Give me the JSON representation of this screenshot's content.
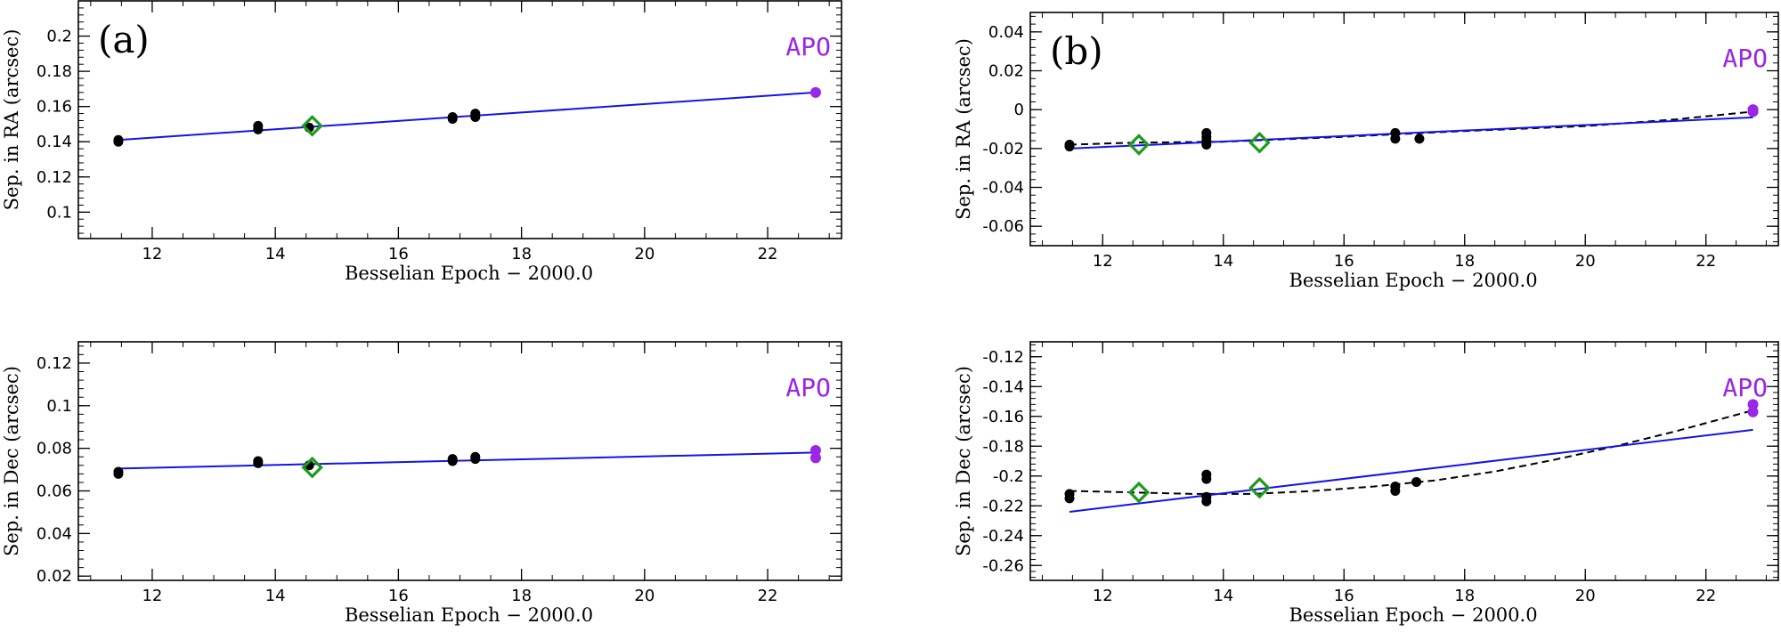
{
  "colors": {
    "fit_line": "#1414e6",
    "points": "#000000",
    "diamond": "#1e9a1e",
    "apo": "#9a26e6",
    "dashed_fit": "#000000"
  },
  "chart_data": [
    {
      "type": "scatter",
      "id": "a-ra",
      "panel_label": "(a)",
      "site_label": "APO",
      "xlabel": "Besselian Epoch − 2000.0",
      "ylabel": "Sep. in RA (arcsec)",
      "xlim": [
        10.8,
        23.2
      ],
      "ylim": [
        0.085,
        0.22
      ],
      "xticks": [
        12,
        14,
        16,
        18,
        20,
        22
      ],
      "xtick_labels": [
        "12",
        "14",
        "16",
        "18",
        "20",
        "22"
      ],
      "yticks": [
        0.1,
        0.12,
        0.14,
        0.16,
        0.18,
        0.2
      ],
      "ytick_labels": [
        "0.1",
        "0.12",
        "0.14",
        "0.16",
        "0.18",
        "0.2"
      ],
      "points": [
        {
          "x": 11.45,
          "y": 0.14
        },
        {
          "x": 11.45,
          "y": 0.141
        },
        {
          "x": 13.72,
          "y": 0.147
        },
        {
          "x": 13.72,
          "y": 0.149
        },
        {
          "x": 14.55,
          "y": 0.148
        },
        {
          "x": 16.88,
          "y": 0.153
        },
        {
          "x": 16.88,
          "y": 0.154
        },
        {
          "x": 17.25,
          "y": 0.154
        },
        {
          "x": 17.25,
          "y": 0.156
        }
      ],
      "diamonds": [
        {
          "x": 14.6,
          "y": 0.149
        }
      ],
      "apo_points": [
        {
          "x": 22.78,
          "y": 0.168
        }
      ],
      "fit_line": [
        {
          "x": 11.45,
          "y": 0.141
        },
        {
          "x": 22.78,
          "y": 0.168
        }
      ],
      "dashed_fit": []
    },
    {
      "type": "scatter",
      "id": "b-ra",
      "panel_label": "(b)",
      "site_label": "APO",
      "xlabel": "Besselian Epoch − 2000.0",
      "ylabel": "Sep. in RA (arcsec)",
      "xlim": [
        10.8,
        23.2
      ],
      "ylim": [
        -0.07,
        0.05
      ],
      "xticks": [
        12,
        14,
        16,
        18,
        20,
        22
      ],
      "xtick_labels": [
        "12",
        "14",
        "16",
        "18",
        "20",
        "22"
      ],
      "yticks": [
        -0.06,
        -0.04,
        -0.02,
        0,
        0.02,
        0.04
      ],
      "ytick_labels": [
        "-0.06",
        "-0.04",
        "-0.02",
        "0",
        "0.02",
        "0.04"
      ],
      "points": [
        {
          "x": 11.45,
          "y": -0.018
        },
        {
          "x": 11.45,
          "y": -0.019
        },
        {
          "x": 13.72,
          "y": -0.012
        },
        {
          "x": 13.72,
          "y": -0.014
        },
        {
          "x": 13.72,
          "y": -0.016
        },
        {
          "x": 13.72,
          "y": -0.018
        },
        {
          "x": 16.85,
          "y": -0.012
        },
        {
          "x": 16.85,
          "y": -0.015
        },
        {
          "x": 17.25,
          "y": -0.015
        }
      ],
      "diamonds": [
        {
          "x": 12.6,
          "y": -0.018
        },
        {
          "x": 14.6,
          "y": -0.017
        }
      ],
      "apo_points": [
        {
          "x": 22.78,
          "y": 0.0
        },
        {
          "x": 22.78,
          "y": -0.001
        }
      ],
      "fit_line": [
        {
          "x": 11.45,
          "y": -0.02
        },
        {
          "x": 22.78,
          "y": -0.004
        }
      ],
      "dashed_fit": [
        {
          "x": 11.45,
          "y": -0.018
        },
        {
          "x": 12.5,
          "y": -0.017
        },
        {
          "x": 14.0,
          "y": -0.0165
        },
        {
          "x": 16.0,
          "y": -0.014
        },
        {
          "x": 18.0,
          "y": -0.011
        },
        {
          "x": 20.0,
          "y": -0.0085
        },
        {
          "x": 21.5,
          "y": -0.005
        },
        {
          "x": 22.78,
          "y": -0.001
        }
      ]
    },
    {
      "type": "scatter",
      "id": "a-dec",
      "panel_label": "",
      "site_label": "APO",
      "xlabel": "Besselian Epoch − 2000.0",
      "ylabel": "Sep. in Dec (arcsec)",
      "xlim": [
        10.8,
        23.2
      ],
      "ylim": [
        0.018,
        0.13
      ],
      "xticks": [
        12,
        14,
        16,
        18,
        20,
        22
      ],
      "xtick_labels": [
        "12",
        "14",
        "16",
        "18",
        "20",
        "22"
      ],
      "yticks": [
        0.02,
        0.04,
        0.06,
        0.08,
        0.1,
        0.12
      ],
      "ytick_labels": [
        "0.02",
        "0.04",
        "0.06",
        "0.08",
        "0.1",
        "0.12"
      ],
      "points": [
        {
          "x": 11.45,
          "y": 0.068
        },
        {
          "x": 11.45,
          "y": 0.069
        },
        {
          "x": 13.72,
          "y": 0.073
        },
        {
          "x": 13.72,
          "y": 0.074
        },
        {
          "x": 14.55,
          "y": 0.072
        },
        {
          "x": 16.88,
          "y": 0.074
        },
        {
          "x": 16.88,
          "y": 0.075
        },
        {
          "x": 17.25,
          "y": 0.075
        },
        {
          "x": 17.25,
          "y": 0.076
        }
      ],
      "diamonds": [
        {
          "x": 14.6,
          "y": 0.071
        }
      ],
      "apo_points": [
        {
          "x": 22.78,
          "y": 0.079
        },
        {
          "x": 22.78,
          "y": 0.0755
        }
      ],
      "fit_line": [
        {
          "x": 11.45,
          "y": 0.0705
        },
        {
          "x": 22.78,
          "y": 0.078
        }
      ],
      "dashed_fit": []
    },
    {
      "type": "scatter",
      "id": "b-dec",
      "panel_label": "",
      "site_label": "APO",
      "xlabel": "Besselian Epoch − 2000.0",
      "ylabel": "Sep. in Dec (arcsec)",
      "xlim": [
        10.8,
        23.2
      ],
      "ylim": [
        -0.27,
        -0.11
      ],
      "xticks": [
        12,
        14,
        16,
        18,
        20,
        22
      ],
      "xtick_labels": [
        "12",
        "14",
        "16",
        "18",
        "20",
        "22"
      ],
      "yticks": [
        -0.26,
        -0.24,
        -0.22,
        -0.2,
        -0.18,
        -0.16,
        -0.14,
        -0.12
      ],
      "ytick_labels": [
        "-0.26",
        "-0.24",
        "-0.22",
        "-0.2",
        "-0.18",
        "-0.16",
        "-0.14",
        "-0.12"
      ],
      "points": [
        {
          "x": 11.45,
          "y": -0.212
        },
        {
          "x": 11.45,
          "y": -0.215
        },
        {
          "x": 13.72,
          "y": -0.199
        },
        {
          "x": 13.72,
          "y": -0.202
        },
        {
          "x": 13.72,
          "y": -0.214
        },
        {
          "x": 13.72,
          "y": -0.217
        },
        {
          "x": 16.85,
          "y": -0.207
        },
        {
          "x": 16.85,
          "y": -0.21
        },
        {
          "x": 17.2,
          "y": -0.204
        }
      ],
      "diamonds": [
        {
          "x": 12.6,
          "y": -0.211
        },
        {
          "x": 14.6,
          "y": -0.208
        }
      ],
      "apo_points": [
        {
          "x": 22.78,
          "y": -0.152
        },
        {
          "x": 22.78,
          "y": -0.157
        }
      ],
      "fit_line": [
        {
          "x": 11.45,
          "y": -0.224
        },
        {
          "x": 22.78,
          "y": -0.169
        }
      ],
      "dashed_fit": [
        {
          "x": 11.45,
          "y": -0.21
        },
        {
          "x": 12.5,
          "y": -0.211
        },
        {
          "x": 13.5,
          "y": -0.212
        },
        {
          "x": 14.5,
          "y": -0.212
        },
        {
          "x": 15.5,
          "y": -0.21
        },
        {
          "x": 16.5,
          "y": -0.207
        },
        {
          "x": 17.5,
          "y": -0.203
        },
        {
          "x": 18.5,
          "y": -0.197
        },
        {
          "x": 19.5,
          "y": -0.189
        },
        {
          "x": 20.5,
          "y": -0.18
        },
        {
          "x": 21.5,
          "y": -0.17
        },
        {
          "x": 22.78,
          "y": -0.156
        }
      ]
    }
  ]
}
